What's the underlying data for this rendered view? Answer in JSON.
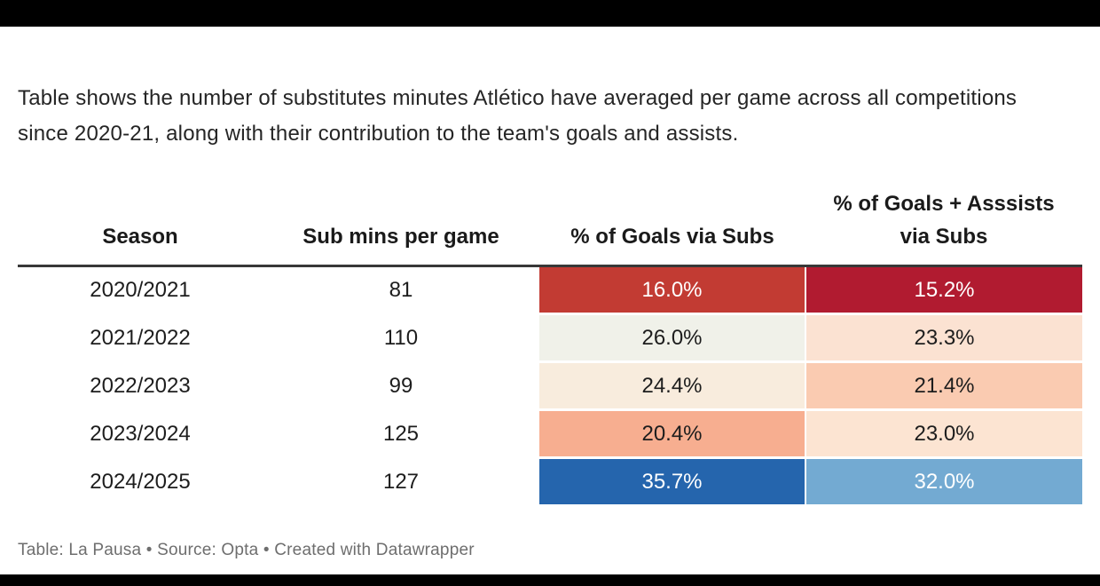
{
  "page": {
    "background_color": "#ffffff",
    "top_bar_color": "#000000",
    "bottom_bar_color": "#000000"
  },
  "description": {
    "text": "Table shows the number of substitutes minutes Atlético have averaged per game across all competitions since 2020-21, along with their contribution to the team's goals and assists."
  },
  "table": {
    "header_rule_color": "#383838",
    "columns": [
      {
        "label": "Season"
      },
      {
        "label": "Sub mins per game"
      },
      {
        "label": "% of Goals via Subs"
      },
      {
        "label": "% of Goals + Asssists via Subs"
      }
    ],
    "rows": [
      {
        "season": "2020/2021",
        "sub_mins": "81",
        "goals_pct": "16.0%",
        "goals_bg": "#c23b33",
        "goals_fg": "#ffffff",
        "ga_pct": "15.2%",
        "ga_bg": "#b11b30",
        "ga_fg": "#ffffff"
      },
      {
        "season": "2021/2022",
        "sub_mins": "110",
        "goals_pct": "26.0%",
        "goals_bg": "#f0f1e9",
        "goals_fg": "#1d1d1d",
        "ga_pct": "23.3%",
        "ga_bg": "#fbe2d2",
        "ga_fg": "#1d1d1d"
      },
      {
        "season": "2022/2023",
        "sub_mins": "99",
        "goals_pct": "24.4%",
        "goals_bg": "#f8ecdd",
        "goals_fg": "#1d1d1d",
        "ga_pct": "21.4%",
        "ga_bg": "#facbb1",
        "ga_fg": "#1d1d1d"
      },
      {
        "season": "2023/2024",
        "sub_mins": "125",
        "goals_pct": "20.4%",
        "goals_bg": "#f7ae90",
        "goals_fg": "#1d1d1d",
        "ga_pct": "23.0%",
        "ga_bg": "#fce4d2",
        "ga_fg": "#1d1d1d"
      },
      {
        "season": "2024/2025",
        "sub_mins": "127",
        "goals_pct": "35.7%",
        "goals_bg": "#2565ad",
        "goals_fg": "#ffffff",
        "ga_pct": "32.0%",
        "ga_bg": "#73aad2",
        "ga_fg": "#ffffff"
      }
    ]
  },
  "footer": {
    "text": "Table: La Pausa • Source: Opta • Created with Datawrapper"
  },
  "chart_data": {
    "type": "table",
    "description": "Table shows the number of substitutes minutes Atlético have averaged per game across all competitions since 2020-21, along with their contribution to the team's goals and assists.",
    "columns": [
      "Season",
      "Sub mins per game",
      "% of Goals via Subs",
      "% of Goals + Asssists via Subs"
    ],
    "rows": [
      [
        "2020/2021",
        81,
        16.0,
        15.2
      ],
      [
        "2021/2022",
        110,
        26.0,
        23.3
      ],
      [
        "2022/2023",
        99,
        24.4,
        21.4
      ],
      [
        "2023/2024",
        125,
        20.4,
        23.0
      ],
      [
        "2024/2025",
        127,
        35.7,
        32.0
      ]
    ],
    "heatmap_columns": [
      "% of Goals via Subs",
      "% of Goals + Asssists via Subs"
    ],
    "heatmap_palette": "red-low to blue-high diverging",
    "source": "Opta",
    "credit": "Table: La Pausa • Source: Opta • Created with Datawrapper"
  }
}
